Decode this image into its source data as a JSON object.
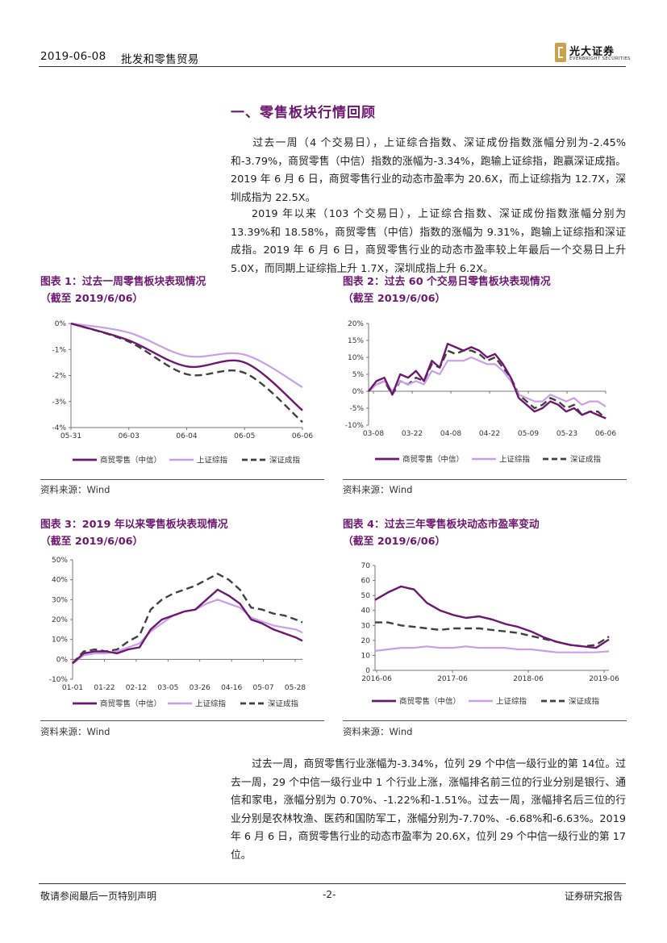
{
  "header": {
    "date": "2019-06-08",
    "sector": "批发和零售贸易",
    "logo_cn": "光大证券",
    "logo_en": "EVERBRIGHT SECURITIES"
  },
  "section_title": "一、零售板块行情回顾",
  "paragraphs": [
    "过去一周（4 个交易日），上证综合指数、深证成份指数涨幅分别为-2.45%和-3.79%，商贸零售（中信）指数的涨幅为-3.34%，跑输上证综指，跑赢深证成指。2019 年 6 月 6 日，商贸零售行业的动态市盈率为 20.6X，而上证综指为 12.7X，深圳成指为 22.5X。",
    "2019 年以来（103 个交易日），上证综合指数、深证成份指数涨幅分别为13.39%和 18.58%，商贸零售（中信）指数的涨幅为 9.31%，跑输上证综指和深证成指。2019 年 6 月 6 日，商贸零售行业的动态市盈率较上年最后一个交易日上升 5.0X，而同期上证综指上升 1.7X，深圳成指上升 6.2X。",
    "过去一周，商贸零售行业涨幅为-3.34%，位列 29 个中信一级行业的第 14位。过去一周，29 个中信一级行业中 1 个行业上涨，涨幅排名前三位的行业分别是银行、通信和家电，涨幅分别为 0.70%、-1.22%和-1.51%。过去一周，涨幅排名后三位的行业分别是农林牧渔、医药和国防军工，涨幅分别为-7.70%、-6.68%和-6.63%。2019 年 6 月 6 日，商贸零售行业的动态市盈率为 20.6X，位列 29 个中信一级行业的第 17 位。"
  ],
  "legend": [
    "商贸零售（中信）",
    "上证综指",
    "深证成指"
  ],
  "colors": {
    "retail": "#6d1770",
    "sh": "#c9a0e8",
    "sz": "#404040",
    "title": "#6d1770"
  },
  "source": "资料来源：Wind",
  "chart_data": [
    {
      "type": "line",
      "title_line1": "图表 1：过去一周零售板块表现情况",
      "title_line2": "（截至 2019/6/06）",
      "x_ticks": [
        "05-31",
        "06-03",
        "06-04",
        "06-05",
        "06-06"
      ],
      "y_ticks": [
        "0%",
        "-1%",
        "-2%",
        "-3%",
        "-4%"
      ],
      "ylim": [
        -4,
        0
      ],
      "x": [
        0,
        1,
        2,
        3,
        4
      ],
      "smooth": true,
      "series": [
        {
          "name": "商贸零售（中信）",
          "values": [
            0,
            -0.65,
            -1.65,
            -1.5,
            -3.34
          ]
        },
        {
          "name": "上证综指",
          "values": [
            0,
            -0.35,
            -1.25,
            -1.2,
            -2.45
          ]
        },
        {
          "name": "深证成指",
          "values": [
            0,
            -0.7,
            -1.95,
            -1.9,
            -3.79
          ]
        }
      ]
    },
    {
      "type": "line",
      "title_line1": "图表 2：过去 60 个交易日零售板块表现情况",
      "title_line2": "（截至 2019/6/06）",
      "x_ticks": [
        "03-08",
        "03-22",
        "04-08",
        "04-22",
        "05-09",
        "05-23",
        "06-06"
      ],
      "y_ticks": [
        "20%",
        "15%",
        "10%",
        "5%",
        "0%",
        "-5%",
        "-10%"
      ],
      "ylim": [
        -10,
        20
      ],
      "x": [
        0,
        2,
        4,
        6,
        8,
        10,
        12,
        14,
        16,
        18,
        20,
        22,
        24,
        26,
        28,
        30,
        32,
        34,
        36,
        38,
        40,
        42,
        44,
        46,
        48,
        50,
        52,
        54,
        56,
        58,
        60
      ],
      "series": [
        {
          "name": "商贸零售（中信）",
          "values": [
            0,
            3,
            4,
            -1,
            5,
            4,
            6,
            3,
            9,
            7,
            14,
            13,
            12,
            13,
            12,
            10,
            11,
            8,
            4,
            -2,
            -4,
            -6,
            -5,
            -3,
            -4,
            -6,
            -5,
            -7,
            -6,
            -7,
            -8
          ]
        },
        {
          "name": "上证综指",
          "values": [
            0,
            2,
            3,
            0,
            3,
            2,
            3,
            2,
            6,
            5,
            9,
            9,
            9,
            10,
            9,
            8,
            8,
            6,
            3,
            -1,
            -2,
            -3,
            -3,
            -1,
            -2,
            -3,
            -2,
            -4,
            -3,
            -3,
            -4.5
          ]
        },
        {
          "name": "深证成指",
          "values": [
            0,
            2,
            3,
            -1,
            3,
            2,
            4,
            3,
            8,
            7,
            12,
            11,
            12,
            12,
            11,
            9,
            10,
            7,
            4,
            -1,
            -3,
            -5,
            -4,
            -2,
            -3,
            -5,
            -4,
            -7,
            -6,
            -6,
            -8
          ]
        }
      ]
    },
    {
      "type": "line",
      "title_line1": "图表 3：2019 年以来零售板块表现情况",
      "title_line2": "（截至 2019/6/06）",
      "x_ticks": [
        "01-01",
        "01-22",
        "02-12",
        "03-05",
        "03-26",
        "04-16",
        "05-07",
        "05-28"
      ],
      "y_ticks": [
        "50%",
        "40%",
        "30%",
        "20%",
        "10%",
        "0%",
        "-10%"
      ],
      "ylim": [
        -10,
        50
      ],
      "x": [
        0,
        5,
        10,
        15,
        20,
        25,
        30,
        35,
        40,
        45,
        50,
        55,
        60,
        65,
        70,
        75,
        80,
        85,
        90,
        95,
        100,
        103
      ],
      "series": [
        {
          "name": "商贸零售（中信）",
          "values": [
            -2,
            3,
            4,
            4,
            3,
            5,
            6,
            15,
            20,
            22,
            24,
            25,
            30,
            35,
            32,
            28,
            20,
            18,
            15,
            13,
            11,
            9.31
          ]
        },
        {
          "name": "上证综指",
          "values": [
            -2,
            2,
            3,
            3,
            4,
            6,
            8,
            14,
            18,
            22,
            24,
            25,
            28,
            30,
            28,
            26,
            21,
            19,
            17,
            16,
            15,
            13.39
          ]
        },
        {
          "name": "深证成指",
          "values": [
            -2,
            4,
            5,
            4,
            5,
            9,
            12,
            25,
            30,
            33,
            35,
            37,
            40,
            43,
            40,
            35,
            26,
            25,
            23,
            22,
            20,
            18.58
          ]
        }
      ]
    },
    {
      "type": "line",
      "title_line1": "图表 4：过去三年零售板块动态市盈率变动",
      "title_line2": "（截至 2019/6/06）",
      "x_ticks": [
        "2016-06",
        "2017-06",
        "2018-06",
        "2019-06"
      ],
      "y_ticks": [
        "70",
        "60",
        "50",
        "40",
        "30",
        "20",
        "10",
        "0"
      ],
      "ylim": [
        0,
        70
      ],
      "x": [
        0,
        2,
        4,
        6,
        8,
        10,
        12,
        14,
        16,
        18,
        20,
        22,
        24,
        26,
        28,
        30,
        32,
        34,
        36
      ],
      "series": [
        {
          "name": "商贸零售（中信）",
          "values": [
            47,
            52,
            56,
            54,
            45,
            40,
            37,
            35,
            36,
            34,
            31,
            29,
            26,
            22,
            19,
            17,
            16,
            15,
            20.6
          ]
        },
        {
          "name": "上证综指",
          "values": [
            13,
            14,
            15,
            15,
            16,
            15,
            15,
            16,
            15,
            15,
            15,
            14,
            14,
            13,
            12,
            12,
            12,
            12,
            12.7
          ]
        },
        {
          "name": "深证成指",
          "values": [
            32,
            32,
            30,
            29,
            28,
            27,
            28,
            28,
            28,
            27,
            26,
            25,
            23,
            21,
            19,
            17,
            16,
            17,
            22.5
          ]
        }
      ]
    }
  ],
  "footer": {
    "left": "敬请参阅最后一页特别声明",
    "center": "-2-",
    "right": "证券研究报告"
  }
}
